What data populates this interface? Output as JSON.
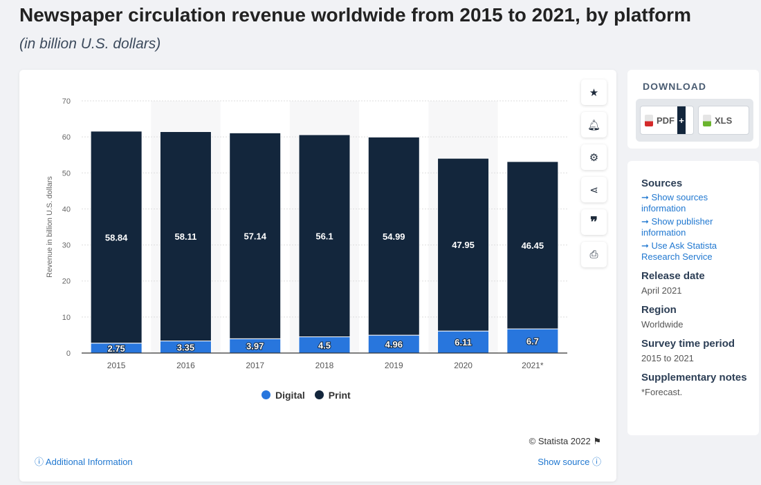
{
  "title": "Newspaper circulation revenue worldwide from 2015 to 2021, by platform",
  "subtitle": "(in billion U.S. dollars)",
  "chart_data": {
    "type": "bar",
    "stacked": true,
    "categories": [
      "2015",
      "2016",
      "2017",
      "2018",
      "2019",
      "2020",
      "2021*"
    ],
    "series": [
      {
        "name": "Digital",
        "color": "#2876dd",
        "values": [
          2.75,
          3.35,
          3.97,
          4.5,
          4.96,
          6.11,
          6.7
        ]
      },
      {
        "name": "Print",
        "color": "#13263c",
        "values": [
          58.84,
          58.11,
          57.14,
          56.1,
          54.99,
          47.95,
          46.45
        ]
      }
    ],
    "ylabel": "Revenue in billion U.S. dollars",
    "ylim": [
      0,
      70
    ],
    "yticks": [
      0,
      10,
      20,
      30,
      40,
      50,
      60,
      70
    ],
    "grid": true,
    "legend": "bottom"
  },
  "credit": "© Statista 2022",
  "additional_info": "Additional Information",
  "show_source": "Show source",
  "download": {
    "heading": "DOWNLOAD",
    "pdf": "PDF",
    "xls": "XLS",
    "plus": "+"
  },
  "meta": {
    "sources_heading": "Sources",
    "links": [
      "Show sources information",
      "Show publisher information",
      "Use Ask Statista Research Service"
    ],
    "release_heading": "Release date",
    "release": "April 2021",
    "region_heading": "Region",
    "region": "Worldwide",
    "period_heading": "Survey time period",
    "period": "2015 to 2021",
    "notes_heading": "Supplementary notes",
    "notes": "*Forecast."
  }
}
